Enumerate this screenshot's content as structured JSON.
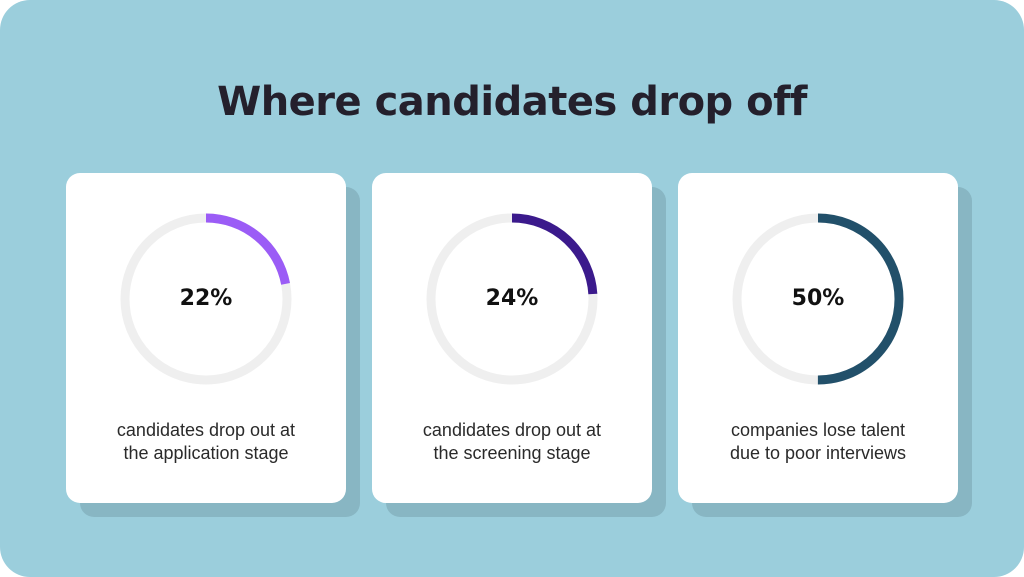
{
  "colors": {
    "background": "#9bcedc",
    "shadow": "#88b6c3",
    "track": "#efefef"
  },
  "title": "Where candidates drop off",
  "chart_data": {
    "type": "pie",
    "items": [
      {
        "value": 22,
        "label": "22%",
        "caption_lines": [
          "candidates drop out at",
          "the application stage"
        ],
        "color": "#9b5cf6"
      },
      {
        "value": 24,
        "label": "24%",
        "caption_lines": [
          "candidates drop out at",
          "the screening stage"
        ],
        "color": "#3b1a8c"
      },
      {
        "value": 50,
        "label": "50%",
        "caption_lines": [
          "companies lose talent",
          "due to poor interviews"
        ],
        "color": "#22506a"
      }
    ]
  }
}
